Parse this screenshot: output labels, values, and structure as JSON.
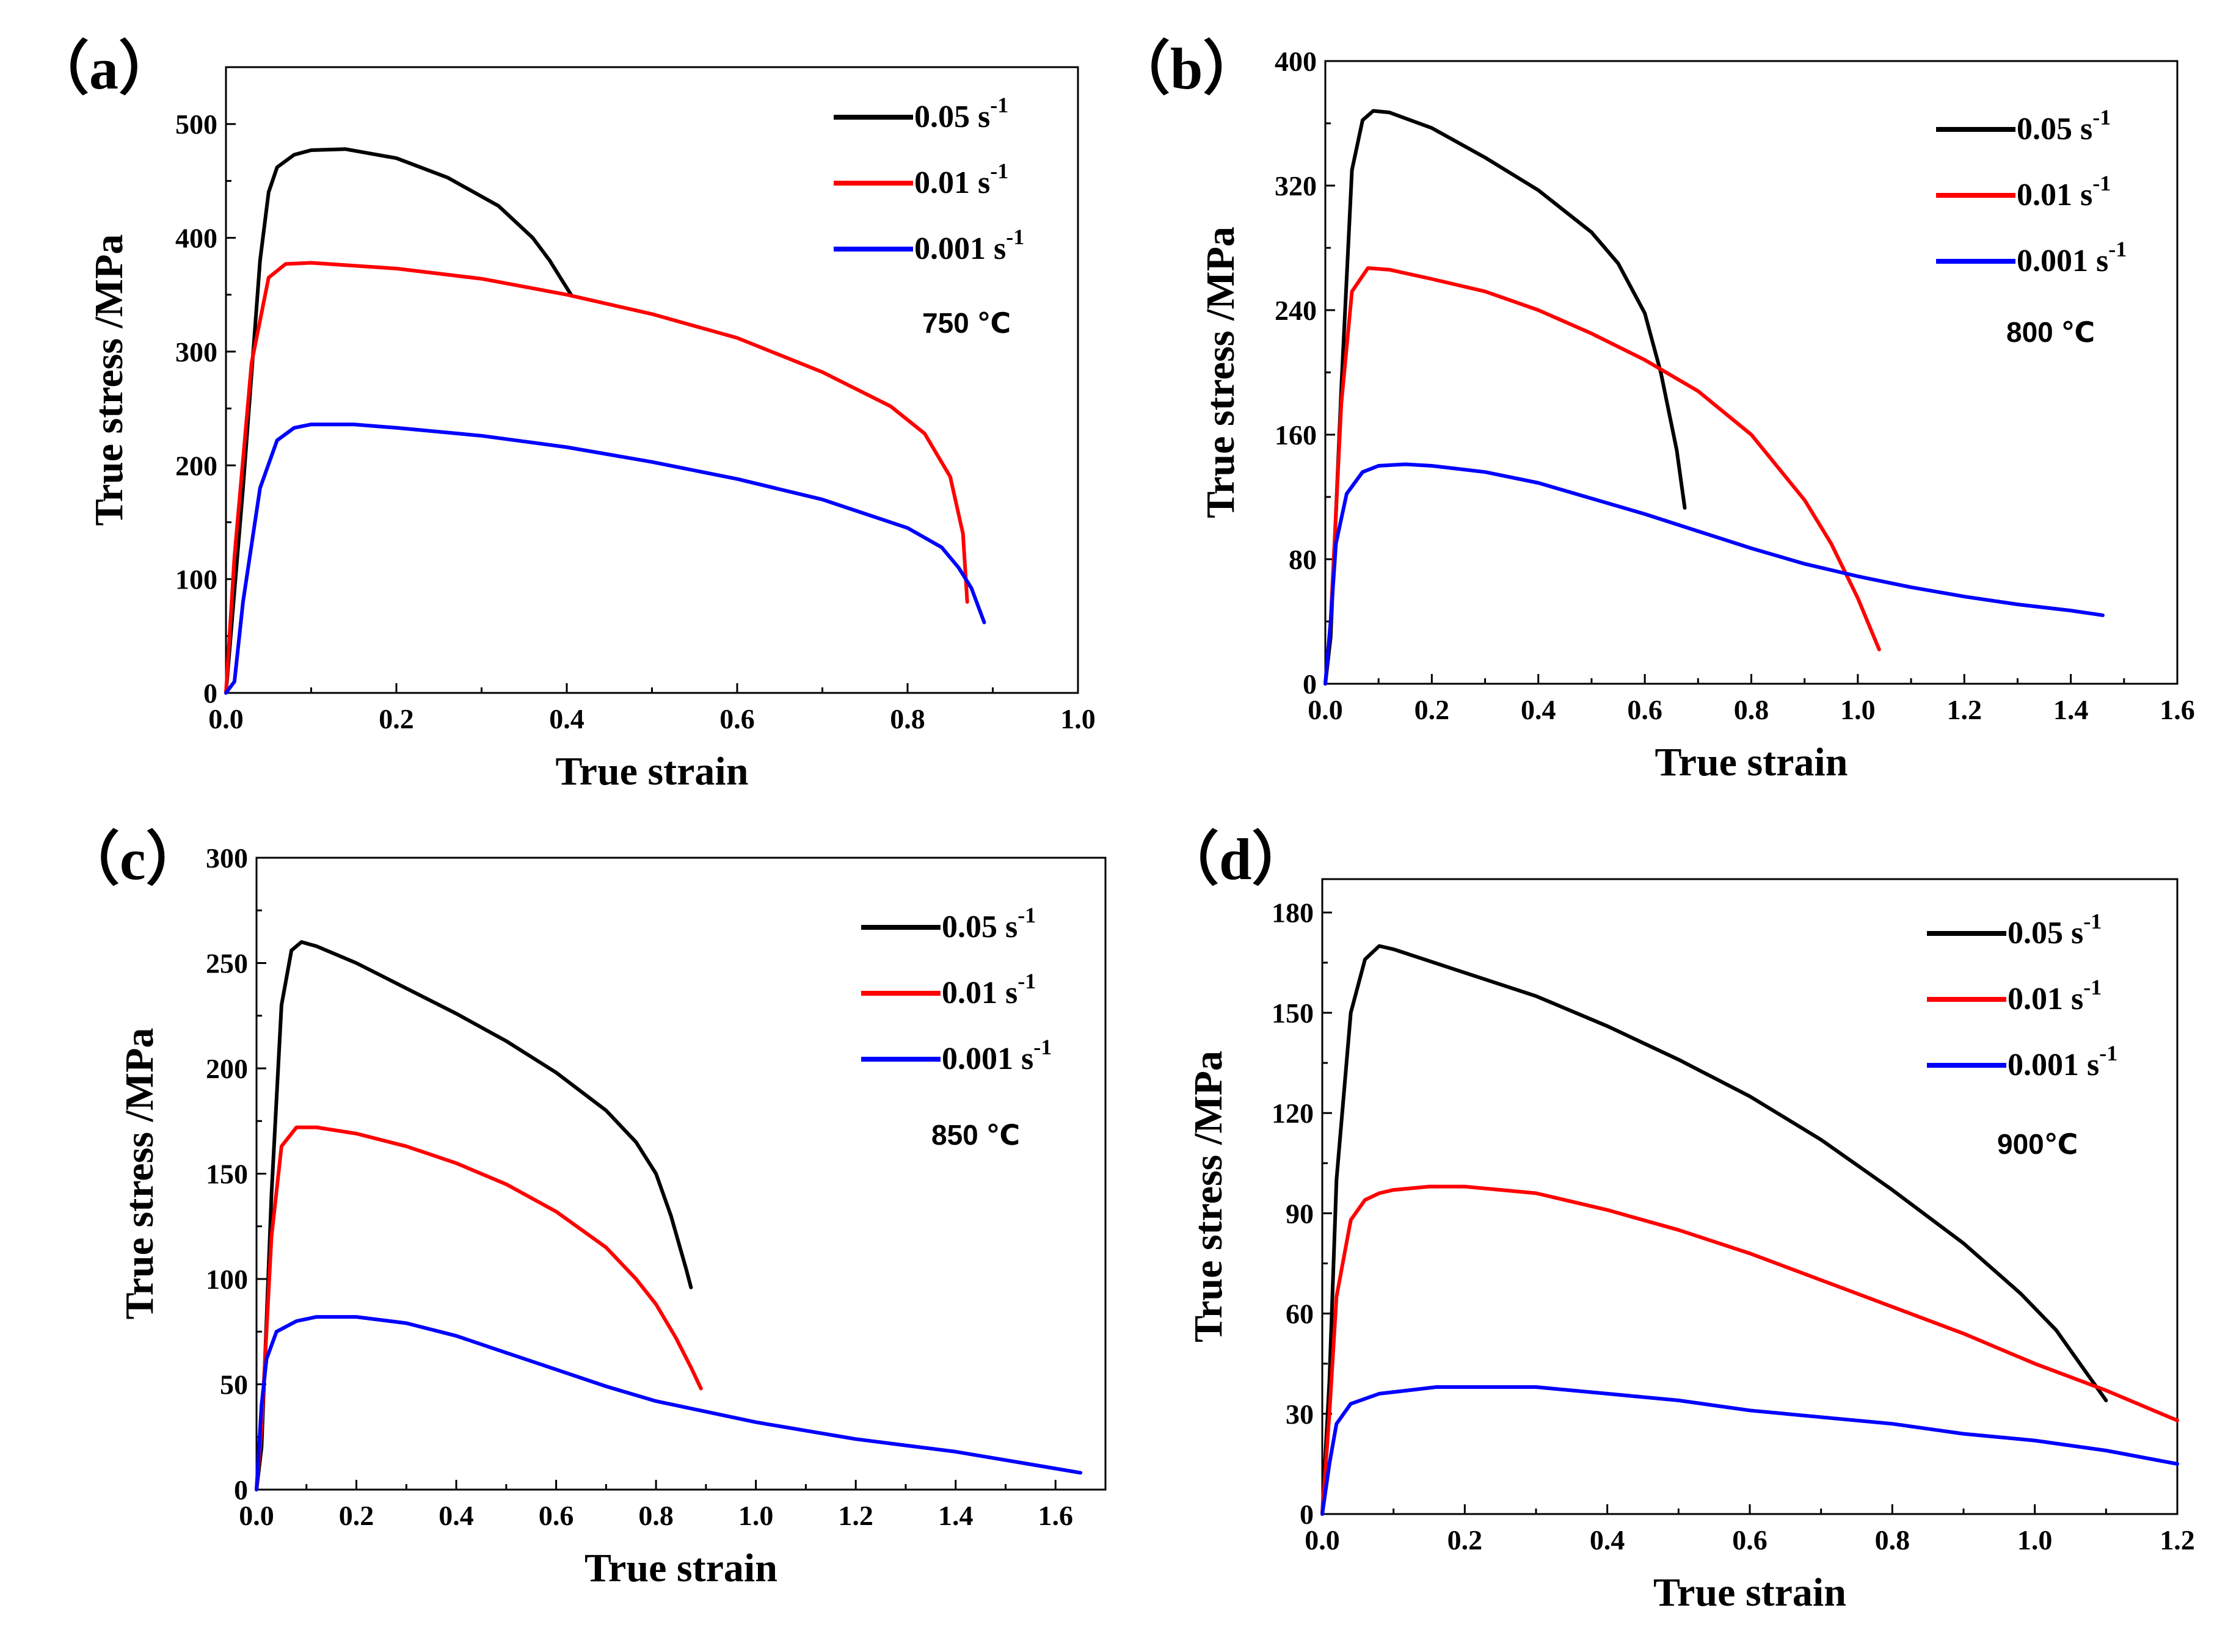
{
  "chart_data": [
    {
      "type": "line",
      "panel_label": "（a）",
      "title": "",
      "xlabel": "True strain",
      "ylabel": "True stress /MPa",
      "xlim": [
        0.0,
        1.0
      ],
      "ylim": [
        0,
        550
      ],
      "x_ticks": [
        0.0,
        0.2,
        0.4,
        0.6,
        0.8,
        1.0
      ],
      "x_tick_labels": [
        "0.0",
        "0.2",
        "0.4",
        "0.6",
        "0.8",
        "1.0"
      ],
      "y_ticks": [
        0,
        100,
        200,
        300,
        400,
        500
      ],
      "y_tick_labels": [
        "0",
        "100",
        "200",
        "300",
        "400",
        "500"
      ],
      "temperature_label": "750 ℃",
      "legend_position": "top-right",
      "series": [
        {
          "name": "0.05 s",
          "unit_sup": "-1",
          "color": "#000000",
          "x": [
            0.0,
            0.02,
            0.04,
            0.05,
            0.06,
            0.08,
            0.1,
            0.14,
            0.2,
            0.26,
            0.32,
            0.36,
            0.38,
            0.395,
            0.405
          ],
          "y": [
            0,
            180,
            380,
            440,
            462,
            473,
            477,
            478,
            470,
            453,
            428,
            400,
            380,
            362,
            350
          ]
        },
        {
          "name": "0.01 s",
          "unit_sup": "-1",
          "color": "#ff0000",
          "x": [
            0.0,
            0.01,
            0.03,
            0.05,
            0.07,
            0.1,
            0.2,
            0.3,
            0.4,
            0.5,
            0.6,
            0.7,
            0.78,
            0.82,
            0.85,
            0.865,
            0.87
          ],
          "y": [
            0,
            120,
            290,
            365,
            377,
            378,
            373,
            364,
            350,
            333,
            312,
            282,
            252,
            228,
            190,
            140,
            80
          ]
        },
        {
          "name": "0.001 s",
          "unit_sup": "-1",
          "color": "#0000ff",
          "x": [
            0.0,
            0.01,
            0.02,
            0.04,
            0.06,
            0.08,
            0.1,
            0.15,
            0.2,
            0.3,
            0.4,
            0.5,
            0.6,
            0.7,
            0.8,
            0.84,
            0.86,
            0.875,
            0.89
          ],
          "y": [
            0,
            10,
            80,
            180,
            222,
            233,
            236,
            236,
            233,
            226,
            216,
            203,
            188,
            170,
            145,
            128,
            110,
            92,
            62
          ]
        }
      ]
    },
    {
      "type": "line",
      "panel_label": "（b）",
      "title": "",
      "xlabel": "True strain",
      "ylabel": "True stress /MPa",
      "xlim": [
        0.0,
        1.6
      ],
      "ylim": [
        0,
        400
      ],
      "x_ticks": [
        0.0,
        0.2,
        0.4,
        0.6,
        0.8,
        1.0,
        1.2,
        1.4,
        1.6
      ],
      "x_tick_labels": [
        "0.0",
        "0.2",
        "0.4",
        "0.6",
        "0.8",
        "1.0",
        "1.2",
        "1.4",
        "1.6"
      ],
      "y_ticks": [
        0,
        80,
        160,
        240,
        320,
        400
      ],
      "y_tick_labels": [
        "0",
        "80",
        "160",
        "240",
        "320",
        "400"
      ],
      "temperature_label": "800 ℃",
      "legend_position": "top-right",
      "series": [
        {
          "name": "0.05 s",
          "unit_sup": "-1",
          "color": "#000000",
          "x": [
            0.0,
            0.01,
            0.03,
            0.05,
            0.07,
            0.09,
            0.12,
            0.2,
            0.3,
            0.4,
            0.5,
            0.55,
            0.6,
            0.63,
            0.66,
            0.675
          ],
          "y": [
            0,
            30,
            190,
            330,
            362,
            368,
            367,
            357,
            338,
            317,
            290,
            270,
            238,
            200,
            150,
            113
          ]
        },
        {
          "name": "0.01 s",
          "unit_sup": "-1",
          "color": "#ff0000",
          "x": [
            0.0,
            0.01,
            0.03,
            0.05,
            0.08,
            0.12,
            0.2,
            0.3,
            0.4,
            0.5,
            0.6,
            0.7,
            0.8,
            0.9,
            0.95,
            1.0,
            1.04
          ],
          "y": [
            0,
            40,
            180,
            252,
            267,
            266,
            260,
            252,
            240,
            225,
            208,
            188,
            160,
            118,
            90,
            55,
            22
          ]
        },
        {
          "name": "0.001 s",
          "unit_sup": "-1",
          "color": "#0000ff",
          "x": [
            0.0,
            0.01,
            0.02,
            0.04,
            0.07,
            0.1,
            0.15,
            0.2,
            0.3,
            0.4,
            0.5,
            0.6,
            0.7,
            0.8,
            0.9,
            1.0,
            1.1,
            1.2,
            1.3,
            1.4,
            1.46
          ],
          "y": [
            0,
            40,
            90,
            122,
            136,
            140,
            141,
            140,
            136,
            129,
            119,
            109,
            98,
            87,
            77,
            69,
            62,
            56,
            51,
            47,
            44
          ]
        }
      ]
    },
    {
      "type": "line",
      "panel_label": "（c）",
      "title": "",
      "xlabel": "True strain",
      "ylabel": "True stress /MPa",
      "xlim": [
        0.0,
        1.7
      ],
      "ylim": [
        0,
        300
      ],
      "x_ticks": [
        0.0,
        0.2,
        0.4,
        0.6,
        0.8,
        1.0,
        1.2,
        1.4,
        1.6
      ],
      "x_tick_labels": [
        "0.0",
        "0.2",
        "0.4",
        "0.6",
        "0.8",
        "1.0",
        "1.2",
        "1.4",
        "1.6"
      ],
      "y_ticks": [
        0,
        50,
        100,
        150,
        200,
        250,
        300
      ],
      "y_tick_labels": [
        "0",
        "50",
        "100",
        "150",
        "200",
        "250",
        "300"
      ],
      "temperature_label": "850 ℃",
      "legend_position": "top-right",
      "series": [
        {
          "name": "0.05 s",
          "unit_sup": "-1",
          "color": "#000000",
          "x": [
            0.0,
            0.01,
            0.03,
            0.05,
            0.07,
            0.09,
            0.12,
            0.2,
            0.3,
            0.4,
            0.5,
            0.6,
            0.7,
            0.76,
            0.8,
            0.83,
            0.86,
            0.87
          ],
          "y": [
            0,
            20,
            140,
            230,
            256,
            260,
            258,
            250,
            238,
            226,
            213,
            198,
            180,
            165,
            150,
            130,
            105,
            96
          ]
        },
        {
          "name": "0.01 s",
          "unit_sup": "-1",
          "color": "#ff0000",
          "x": [
            0.0,
            0.01,
            0.03,
            0.05,
            0.08,
            0.12,
            0.2,
            0.3,
            0.4,
            0.5,
            0.6,
            0.7,
            0.76,
            0.8,
            0.84,
            0.87,
            0.89
          ],
          "y": [
            0,
            30,
            120,
            163,
            172,
            172,
            169,
            163,
            155,
            145,
            132,
            115,
            100,
            88,
            72,
            58,
            48
          ]
        },
        {
          "name": "0.001 s",
          "unit_sup": "-1",
          "color": "#0000ff",
          "x": [
            0.0,
            0.01,
            0.02,
            0.04,
            0.08,
            0.12,
            0.2,
            0.3,
            0.4,
            0.5,
            0.6,
            0.7,
            0.8,
            0.9,
            1.0,
            1.1,
            1.2,
            1.3,
            1.4,
            1.5,
            1.6,
            1.65
          ],
          "y": [
            0,
            40,
            62,
            75,
            80,
            82,
            82,
            79,
            73,
            65,
            57,
            49,
            42,
            37,
            32,
            28,
            24,
            21,
            18,
            14,
            10,
            8
          ]
        }
      ]
    },
    {
      "type": "line",
      "panel_label": "（d）",
      "title": "",
      "xlabel": "True strain",
      "ylabel": "True stress /MPa",
      "xlim": [
        0.0,
        1.2
      ],
      "ylim": [
        0,
        190
      ],
      "x_ticks": [
        0.0,
        0.2,
        0.4,
        0.6,
        0.8,
        1.0,
        1.2
      ],
      "x_tick_labels": [
        "0.0",
        "0.2",
        "0.4",
        "0.6",
        "0.8",
        "1.0",
        "1.2"
      ],
      "y_ticks": [
        0,
        30,
        60,
        90,
        120,
        150,
        180
      ],
      "y_tick_labels": [
        "0",
        "30",
        "60",
        "90",
        "120",
        "150",
        "180"
      ],
      "temperature_label": "900℃",
      "legend_position": "top-right",
      "series": [
        {
          "name": "0.05 s",
          "unit_sup": "-1",
          "color": "#000000",
          "x": [
            0.0,
            0.01,
            0.02,
            0.04,
            0.06,
            0.08,
            0.1,
            0.2,
            0.3,
            0.4,
            0.5,
            0.6,
            0.7,
            0.8,
            0.9,
            0.98,
            1.03,
            1.07,
            1.1
          ],
          "y": [
            0,
            40,
            100,
            150,
            166,
            170,
            169,
            162,
            155,
            146,
            136,
            125,
            112,
            97,
            81,
            66,
            55,
            43,
            34
          ]
        },
        {
          "name": "0.01 s",
          "unit_sup": "-1",
          "color": "#ff0000",
          "x": [
            0.0,
            0.01,
            0.02,
            0.04,
            0.06,
            0.08,
            0.1,
            0.15,
            0.2,
            0.3,
            0.4,
            0.5,
            0.6,
            0.7,
            0.8,
            0.9,
            1.0,
            1.1,
            1.2
          ],
          "y": [
            0,
            30,
            65,
            88,
            94,
            96,
            97,
            98,
            98,
            96,
            91,
            85,
            78,
            70,
            62,
            54,
            45,
            37,
            28
          ]
        },
        {
          "name": "0.001 s",
          "unit_sup": "-1",
          "color": "#0000ff",
          "x": [
            0.0,
            0.01,
            0.02,
            0.04,
            0.08,
            0.12,
            0.16,
            0.2,
            0.3,
            0.4,
            0.5,
            0.6,
            0.7,
            0.8,
            0.9,
            1.0,
            1.1,
            1.2
          ],
          "y": [
            0,
            15,
            27,
            33,
            36,
            37,
            38,
            38,
            38,
            36,
            34,
            31,
            29,
            27,
            24,
            22,
            19,
            15
          ]
        }
      ]
    }
  ]
}
